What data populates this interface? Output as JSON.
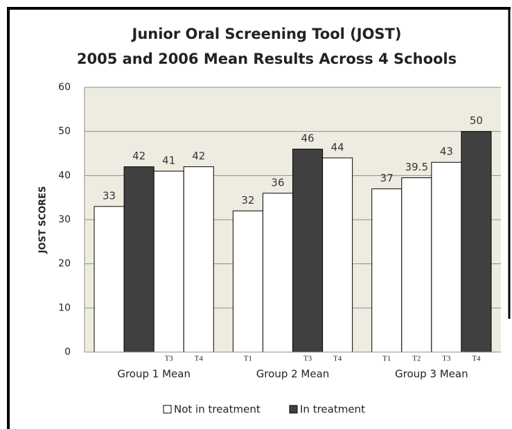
{
  "chart_data": {
    "type": "grouped_bar",
    "title": [
      "Junior Oral Screening Tool (JOST)",
      "2005 and 2006 Mean Results Across 4 Schools"
    ],
    "y_label": "JOST SCORES",
    "ylim": [
      0,
      60
    ],
    "yticks": [
      0,
      10,
      20,
      30,
      40,
      50,
      60
    ],
    "grid": true,
    "series": [
      {
        "name": "Not in treatment",
        "color": "#ffffff"
      },
      {
        "name": "In treatment",
        "color": "#404040"
      }
    ],
    "groups": [
      {
        "name": "Group 1 Mean",
        "bars": [
          {
            "label": null,
            "value": 33,
            "treatment": false
          },
          {
            "label": null,
            "value": 42,
            "treatment": true
          },
          {
            "label": "T3",
            "value": 41,
            "treatment": false
          },
          {
            "label": "T4",
            "value": 42,
            "treatment": false
          }
        ]
      },
      {
        "name": "Group 2 Mean",
        "bars": [
          {
            "label": "T1",
            "value": 32,
            "treatment": false
          },
          {
            "label": null,
            "value": 36,
            "treatment": false
          },
          {
            "label": "T3",
            "value": 46,
            "treatment": true
          },
          {
            "label": "T4",
            "value": 44,
            "treatment": false
          }
        ]
      },
      {
        "name": "Group 3 Mean",
        "bars": [
          {
            "label": "T1",
            "value": 37,
            "treatment": false
          },
          {
            "label": "T2",
            "value": 39.5,
            "treatment": false
          },
          {
            "label": "T3",
            "value": 43,
            "treatment": false
          },
          {
            "label": "T4",
            "value": 50,
            "treatment": true
          }
        ]
      }
    ]
  }
}
